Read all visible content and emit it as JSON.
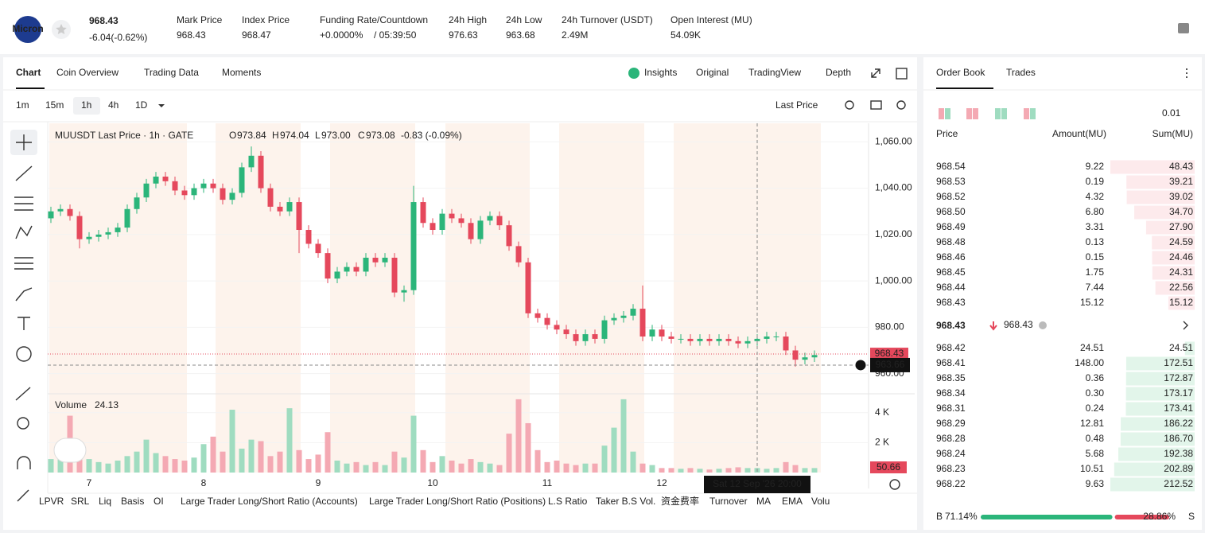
{
  "header": {
    "logo_text": "Micron",
    "price": "968.43",
    "change": "-6.04(-0.62%)",
    "stats": [
      {
        "label": "Mark Price",
        "value": "968.43"
      },
      {
        "label": "Index Price",
        "value": "968.47"
      },
      {
        "label": "Funding Rate/Countdown",
        "value": "+0.0000%",
        "extra": "/ 05:39:50"
      },
      {
        "label": "24h High",
        "value": "976.63"
      },
      {
        "label": "24h Low",
        "value": "963.68"
      },
      {
        "label": "24h Turnover (USDT)",
        "value": "2.49M"
      },
      {
        "label": "Open Interest (MU)",
        "value": "54.09K"
      }
    ]
  },
  "chart_tabs": [
    "Chart",
    "Coin Overview",
    "Trading Data",
    "Moments"
  ],
  "view_tabs": [
    "Insights",
    "Original",
    "TradingView",
    "Depth"
  ],
  "intervals": [
    "1m",
    "15m",
    "1h",
    "4h",
    "1D"
  ],
  "price_type": "Last Price",
  "indicators": [
    "LPVR",
    "SRL",
    "Liq",
    "Basis",
    "OI",
    "Large Trader Long/Short Ratio (Accounts)",
    "Large Trader Long/Short Ratio (Positions)",
    "L.S Ratio",
    "Taker B.S Vol.",
    "资金费率",
    "Turnover",
    "MA",
    "EMA",
    "Volu"
  ],
  "chart_data": {
    "type": "candlestick",
    "title": "MUUSDT Last Price · 1h · GATE",
    "ohlc_legend": [
      {
        "label": "O",
        "value": "973.84"
      },
      {
        "label": "H",
        "value": "974.04"
      },
      {
        "label": "L",
        "value": "973.00"
      },
      {
        "label": "C",
        "value": "973.08"
      }
    ],
    "change": "-0.83 (-0.09%)",
    "up_color": "#2bb57a",
    "down_color": "#e5485c",
    "categories": [
      null,
      null,
      null,
      null,
      "7",
      null,
      null,
      null,
      null,
      null,
      null,
      null,
      null,
      null,
      null,
      null,
      "8",
      null,
      null,
      null,
      null,
      null,
      null,
      null,
      null,
      null,
      null,
      null,
      "9",
      null,
      null,
      null,
      null,
      null,
      null,
      null,
      null,
      null,
      null,
      null,
      "10",
      null,
      null,
      null,
      null,
      null,
      null,
      null,
      null,
      null,
      null,
      null,
      "11",
      null,
      null,
      null,
      null,
      null,
      null,
      null,
      null,
      null,
      null,
      null,
      "12",
      null,
      null,
      null,
      null,
      null,
      null,
      null,
      null,
      null,
      null,
      null,
      null,
      null,
      null,
      null,
      null
    ],
    "open": [
      1027,
      1030,
      1031,
      1028,
      1018,
      1019,
      1020,
      1021,
      1023,
      1031,
      1036,
      1042,
      1045,
      1043,
      1039,
      1037,
      1040,
      1042,
      1040,
      1035,
      1038,
      1049,
      1054,
      1040,
      1032,
      1030,
      1034,
      1022,
      1016,
      1012,
      1001,
      1004,
      1006,
      1004,
      1010,
      1008,
      1010,
      995,
      996,
      1034,
      1025,
      1022,
      1029,
      1027,
      1025,
      1018,
      1026,
      1028,
      1024,
      1015,
      1008,
      986,
      984,
      981,
      979,
      977,
      974,
      977,
      975,
      983,
      984,
      985,
      988,
      976,
      979,
      976,
      975,
      975,
      974,
      975,
      974,
      975,
      974,
      973,
      974,
      975,
      976,
      976,
      970,
      966,
      967
    ],
    "high": [
      1032,
      1033,
      1033,
      1030,
      1021,
      1022,
      1023,
      1025,
      1033,
      1038,
      1044,
      1047,
      1047,
      1045,
      1041,
      1042,
      1044,
      1044,
      1042,
      1040,
      1051,
      1058,
      1056,
      1042,
      1034,
      1036,
      1036,
      1024,
      1018,
      1014,
      1006,
      1008,
      1008,
      1012,
      1012,
      1012,
      1012,
      998,
      1041,
      1036,
      1027,
      1031,
      1031,
      1029,
      1027,
      1028,
      1030,
      1030,
      1026,
      1017,
      1010,
      988,
      986,
      983,
      981,
      979,
      979,
      979,
      985,
      986,
      987,
      990,
      998,
      981,
      981,
      978,
      977,
      977,
      977,
      977,
      977,
      977,
      976,
      976,
      977,
      978,
      978,
      978,
      972,
      969,
      970
    ],
    "low": [
      1025,
      1028,
      1026,
      1014,
      1016,
      1017,
      1018,
      1019,
      1021,
      1029,
      1034,
      1040,
      1041,
      1037,
      1035,
      1035,
      1038,
      1038,
      1033,
      1033,
      1036,
      1047,
      1038,
      1030,
      1028,
      1028,
      1012,
      1014,
      1010,
      999,
      999,
      1002,
      1002,
      1002,
      1006,
      1006,
      993,
      991,
      994,
      1023,
      1020,
      1020,
      1025,
      1023,
      1016,
      1016,
      1024,
      1022,
      1013,
      1006,
      984,
      982,
      979,
      977,
      975,
      972,
      972,
      973,
      973,
      981,
      982,
      983,
      974,
      974,
      974,
      973,
      973,
      972,
      972,
      972,
      972,
      972,
      971,
      971,
      972,
      973,
      974,
      968,
      963,
      964,
      965
    ],
    "close": [
      1030,
      1031,
      1028,
      1018,
      1019,
      1020,
      1021,
      1023,
      1031,
      1036,
      1042,
      1045,
      1043,
      1039,
      1037,
      1040,
      1042,
      1040,
      1035,
      1038,
      1049,
      1054,
      1040,
      1032,
      1030,
      1034,
      1022,
      1016,
      1012,
      1001,
      1004,
      1006,
      1004,
      1010,
      1008,
      1010,
      995,
      996,
      1034,
      1025,
      1022,
      1029,
      1027,
      1025,
      1018,
      1026,
      1028,
      1024,
      1015,
      1008,
      986,
      984,
      981,
      979,
      977,
      974,
      977,
      975,
      983,
      984,
      985,
      988,
      976,
      979,
      976,
      975,
      975,
      974,
      975,
      974,
      975,
      974,
      973,
      974,
      975,
      976,
      976,
      970,
      966,
      967,
      968
    ],
    "volume": [
      900,
      1200,
      3800,
      1500,
      900,
      700,
      600,
      800,
      1100,
      1400,
      2200,
      1300,
      1100,
      900,
      800,
      1000,
      1900,
      2400,
      1400,
      4200,
      1600,
      2200,
      2100,
      1100,
      1400,
      4300,
      1500,
      900,
      1200,
      2700,
      800,
      600,
      700,
      500,
      700,
      500,
      1400,
      1000,
      3800,
      1500,
      700,
      1100,
      800,
      600,
      900,
      700,
      600,
      500,
      2600,
      4900,
      3300,
      1500,
      700,
      800,
      600,
      500,
      600,
      600,
      1800,
      3000,
      4900,
      1400,
      600,
      500,
      300,
      300,
      250,
      300,
      250,
      200,
      250,
      300,
      350,
      300,
      300,
      250,
      300,
      700,
      500,
      300,
      300
    ],
    "ylim": [
      953,
      1068
    ],
    "yticks": [
      {
        "value": 1060,
        "label": "1,060.00"
      },
      {
        "value": 1040,
        "label": "1,040.00"
      },
      {
        "value": 1020,
        "label": "1,020.00"
      },
      {
        "value": 1000,
        "label": "1,000.00"
      },
      {
        "value": 980,
        "label": "980.00"
      },
      {
        "value": 960,
        "label": "960.00"
      }
    ],
    "volume_title": "Volume",
    "volume_label": "24.13",
    "volume_tag": "50.66",
    "volume_ylim": [
      0,
      5000
    ],
    "volume_yticks": [
      {
        "value": 4000,
        "label": "4 K"
      },
      {
        "value": 2000,
        "label": "2 K"
      }
    ],
    "last_price": 968.43,
    "crosshair_price": 963.66,
    "crosshair_time": "Sat 12 Sep '26  20:00"
  },
  "order_book": {
    "tabs": [
      "Order Book",
      "Trades"
    ],
    "precision": "0.01",
    "columns": [
      "Price",
      "Amount(MU)",
      "Sum(MU)"
    ],
    "asks": [
      [
        "968.54",
        "9.22",
        "48.43"
      ],
      [
        "968.53",
        "0.19",
        "39.21"
      ],
      [
        "968.52",
        "4.32",
        "39.02"
      ],
      [
        "968.50",
        "6.80",
        "34.70"
      ],
      [
        "968.49",
        "3.31",
        "27.90"
      ],
      [
        "968.48",
        "0.13",
        "24.59"
      ],
      [
        "968.46",
        "0.15",
        "24.46"
      ],
      [
        "968.45",
        "1.75",
        "24.31"
      ],
      [
        "968.44",
        "7.44",
        "22.56"
      ],
      [
        "968.43",
        "15.12",
        "15.12"
      ]
    ],
    "last": "968.43",
    "mark": "968.43",
    "bids": [
      [
        "968.42",
        "24.51",
        "24.51"
      ],
      [
        "968.41",
        "148.00",
        "172.51"
      ],
      [
        "968.35",
        "0.36",
        "172.87"
      ],
      [
        "968.34",
        "0.30",
        "173.17"
      ],
      [
        "968.31",
        "0.24",
        "173.41"
      ],
      [
        "968.29",
        "12.81",
        "186.22"
      ],
      [
        "968.28",
        "0.48",
        "186.70"
      ],
      [
        "968.24",
        "5.68",
        "192.38"
      ],
      [
        "968.23",
        "10.51",
        "202.89"
      ],
      [
        "968.22",
        "9.63",
        "212.52"
      ]
    ],
    "buy_label": "B",
    "sell_label": "S",
    "buy_ratio": {
      "value": 71.14,
      "label": "71.14%"
    },
    "sell_ratio": {
      "value": 28.86,
      "label": "28.86%"
    }
  }
}
